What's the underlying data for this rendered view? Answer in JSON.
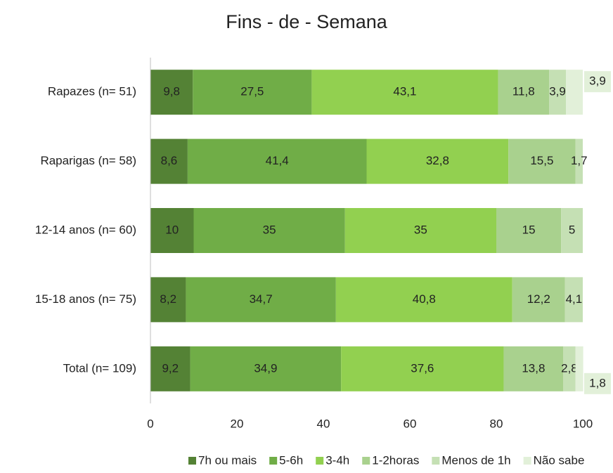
{
  "chart_data": {
    "type": "stacked-bar-horizontal",
    "title": "Fins - de - Semana",
    "categories": [
      "Rapazes (n= 51)",
      "Raparigas (n= 58)",
      "12-14 anos (n= 60)",
      "15-18 anos (n= 75)",
      "Total (n= 109)"
    ],
    "series": [
      {
        "name": "7h ou mais",
        "color": "#548235",
        "values": [
          9.8,
          8.6,
          10,
          8.2,
          9.2
        ],
        "value_labels": [
          "9,8",
          "8,6",
          "10",
          "8,2",
          "9,2"
        ]
      },
      {
        "name": "5-6h",
        "color": "#70ad47",
        "values": [
          27.5,
          41.4,
          35,
          34.7,
          34.9
        ],
        "value_labels": [
          "27,5",
          "41,4",
          "35",
          "34,7",
          "34,9"
        ]
      },
      {
        "name": "3-4h",
        "color": "#92d050",
        "values": [
          43.1,
          32.8,
          35,
          40.8,
          37.6
        ],
        "value_labels": [
          "43,1",
          "32,8",
          "35",
          "40,8",
          "37,6"
        ]
      },
      {
        "name": "1-2horas",
        "color": "#a9d18e",
        "values": [
          11.8,
          15.5,
          15,
          12.2,
          13.8
        ],
        "value_labels": [
          "11,8",
          "15,5",
          "15",
          "12,2",
          "13,8"
        ]
      },
      {
        "name": "Menos de 1h",
        "color": "#c5e0b4",
        "values": [
          3.9,
          1.7,
          5,
          4.1,
          2.8
        ],
        "value_labels": [
          "3,9",
          "1,7",
          "5",
          "4,1",
          "2,8"
        ]
      },
      {
        "name": "Não sabe",
        "color": "#e2f0d9",
        "values": [
          3.9,
          null,
          null,
          null,
          1.8
        ],
        "value_labels": [
          "3,9",
          null,
          null,
          null,
          "1,8"
        ]
      }
    ],
    "xlim": [
      0,
      100
    ],
    "xticks": [
      0,
      20,
      40,
      60,
      80,
      100
    ],
    "grid": false,
    "legend": "bottom"
  }
}
